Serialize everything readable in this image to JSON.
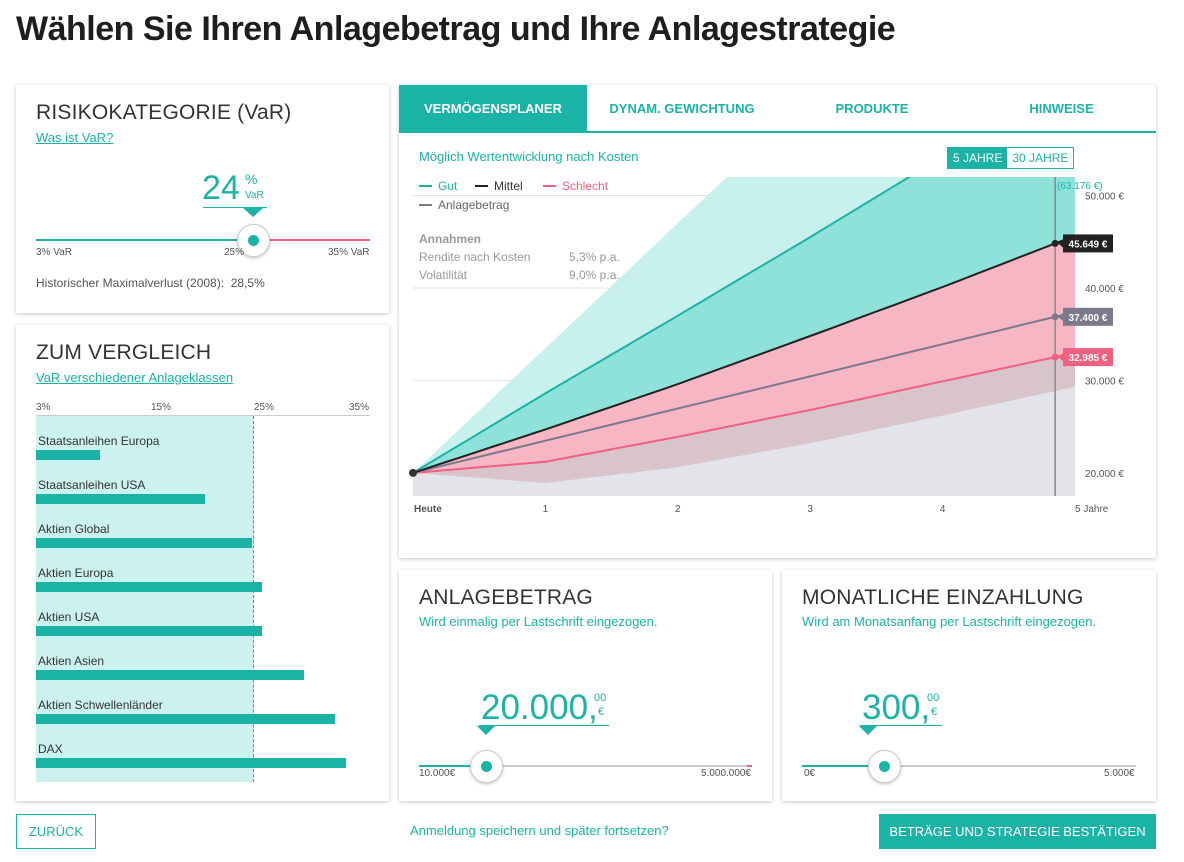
{
  "page": {
    "title": "Wählen Sie Ihren Anlagebetrag und Ihre Anlagestrategie"
  },
  "colors": {
    "accent": "#1ab3a6",
    "bad": "#f06080",
    "avg": "#222222",
    "invest": "#7a7a8c"
  },
  "risk": {
    "title": "RISIKOKATEGORIE (VaR)",
    "link": "Was ist VaR?",
    "value": "24",
    "unit_pct": "%",
    "unit_var": "VaR",
    "slider_value": 24,
    "min_label": "3% VaR",
    "mid_label": "25%",
    "max_label": "35% VaR",
    "historic": "Historischer Maximalverlust (2008):",
    "historic_value": "28,5%"
  },
  "compare": {
    "title": "ZUM VERGLEICH",
    "link": "VaR verschiedener Anlageklassen",
    "ticks": [
      "3%",
      "15%",
      "25%",
      "35%"
    ],
    "items": [
      {
        "label": "Staatsanleihen Europa",
        "value": 6
      },
      {
        "label": "Staatsanleihen USA",
        "value": 16
      },
      {
        "label": "Aktien Global",
        "value": 20.5
      },
      {
        "label": "Aktien Europa",
        "value": 21.5
      },
      {
        "label": "Aktien USA",
        "value": 21.5
      },
      {
        "label": "Aktien Asien",
        "value": 25.5
      },
      {
        "label": "Aktien Schwellenländer",
        "value": 28.5
      },
      {
        "label": "DAX",
        "value": 29.5
      }
    ]
  },
  "chart_tabs": [
    {
      "label": "VERMÖGENSPLANER"
    },
    {
      "label": "DYNAM. GEWICHTUNG"
    },
    {
      "label": "PRODUKTE"
    },
    {
      "label": "HINWEISE"
    }
  ],
  "chart_meta": {
    "subtitle": "Möglich Wertentwicklung nach Kosten",
    "range_5": "5 JAHRE",
    "range_30": "30 JAHRE",
    "legend": {
      "good": "Gut",
      "avg": "Mittel",
      "bad": "Schlecht",
      "invest": "Anlagebetrag"
    },
    "assumptions_title": "Annahmen",
    "return_label": "Rendite nach Kosten",
    "return_value": "5,3% p.a.",
    "vol_label": "Volatilität",
    "vol_value": "9,0% p.a.",
    "flag_good": "(63.176 €)",
    "flag_avg": "45.649 €",
    "flag_invest": "37.400 €",
    "flag_bad": "32.985 €"
  },
  "chart_data": {
    "type": "area",
    "x": [
      0,
      1,
      2,
      3,
      4,
      5
    ],
    "x_tick_labels": [
      "Heute",
      "1",
      "2",
      "3",
      "4",
      "5 Jahre"
    ],
    "y_tick_labels": [
      "20.000 €",
      "30.000 €",
      "40.000 €",
      "50.000 €"
    ],
    "y_ticks": [
      20000,
      30000,
      40000,
      50000
    ],
    "ylim": [
      17500,
      52000
    ],
    "marker_x": 4.85,
    "series": [
      {
        "name": "Gut",
        "values": [
          20000,
          28600,
          37000,
          45500,
          54200,
          63176
        ]
      },
      {
        "name": "Mittel",
        "values": [
          20000,
          24700,
          29600,
          34800,
          40100,
          45649
        ]
      },
      {
        "name": "Anlagebetrag",
        "values": [
          20000,
          23480,
          26960,
          30440,
          33920,
          37400
        ]
      },
      {
        "name": "Schlecht",
        "values": [
          20000,
          21200,
          23900,
          26800,
          29900,
          32985
        ]
      }
    ],
    "bands": {
      "outer_upper": [
        20000,
        33500,
        47000,
        60500,
        74000,
        87500
      ],
      "outer_lower": [
        20000,
        18900,
        20600,
        23200,
        26200,
        29300
      ]
    }
  },
  "amount": {
    "title": "ANLAGEBETRAG",
    "subtitle": "Wird einmalig per Lastschrift eingezogen.",
    "value": "20.000,",
    "cents": "00",
    "currency": "€",
    "slider_fraction": 0.0,
    "min_label": "10.000€",
    "max_label": "5.000.000€"
  },
  "deposit": {
    "title": "MONATLICHE EINZAHLUNG",
    "subtitle": "Wird am Monatsanfang per Lastschrift eingezogen.",
    "value": "300,",
    "cents": "00",
    "currency": "€",
    "slider_fraction": 0.06,
    "min_label": "0€",
    "max_label": "5.000€"
  },
  "footer": {
    "back": "ZURÜCK",
    "save_link": "Anmeldung speichern und später fortsetzen?",
    "confirm": "BETRÄGE UND STRATEGIE BESTÄTIGEN"
  }
}
